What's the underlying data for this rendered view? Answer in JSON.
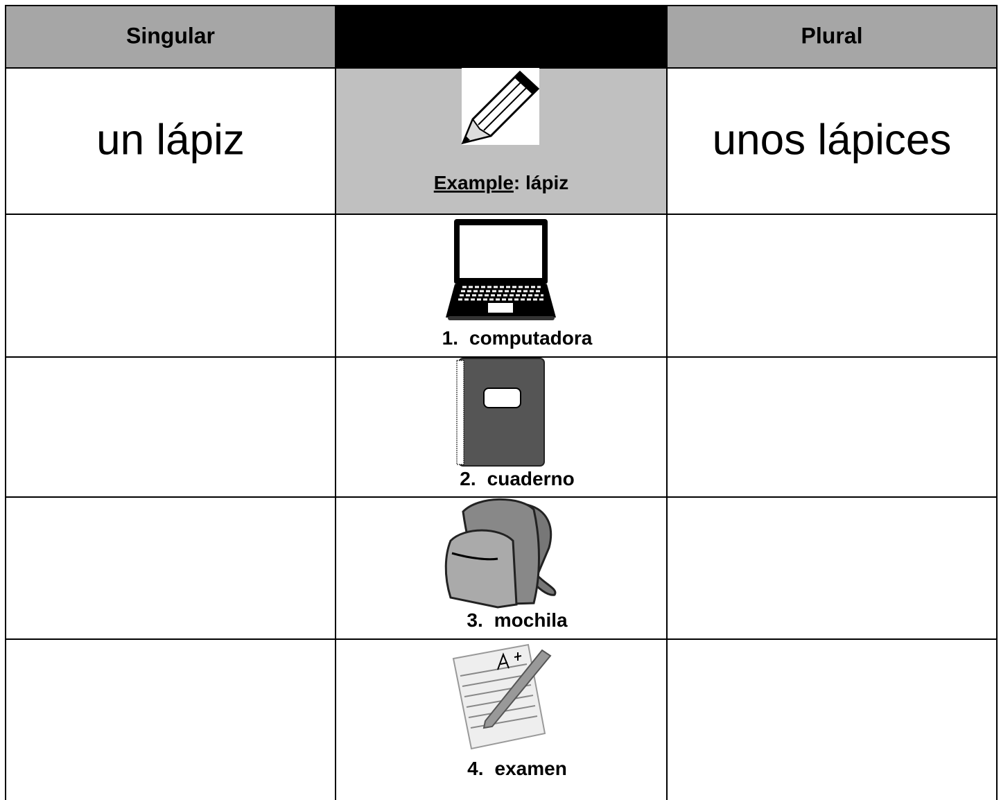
{
  "header": {
    "singular": "Singular",
    "plural": "Plural"
  },
  "example": {
    "singular": "un lápiz",
    "plural": "unos lápices",
    "label": "Example",
    "word": ": lápiz"
  },
  "items": [
    {
      "number": "1.",
      "word": "computadora"
    },
    {
      "number": "2.",
      "word": "cuaderno"
    },
    {
      "number": "3.",
      "word": "mochila"
    },
    {
      "number": "4.",
      "word": "examen"
    }
  ]
}
